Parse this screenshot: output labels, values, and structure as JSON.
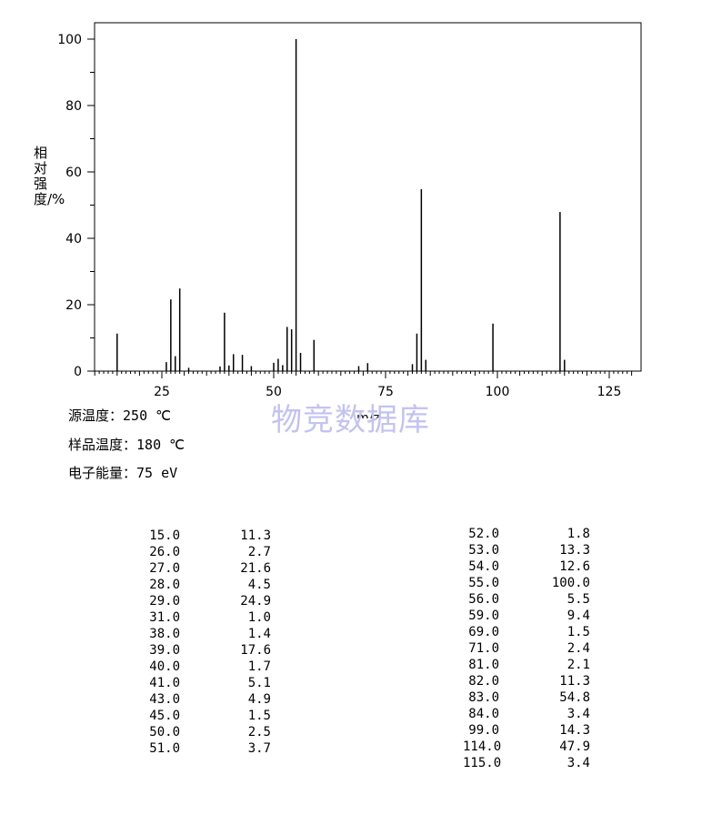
{
  "chart_data": {
    "type": "bar",
    "xlabel": "m/z",
    "ylabel": "相对强度/%",
    "xlim": [
      10,
      130
    ],
    "ylim": [
      0,
      105
    ],
    "x_ticks": [
      25,
      50,
      75,
      100,
      125
    ],
    "y_ticks": [
      0,
      20,
      40,
      60,
      80,
      100
    ],
    "x_tick_labels": [
      "25",
      "50",
      "75",
      "100",
      "125"
    ],
    "y_tick_labels": [
      "0",
      "20",
      "40",
      "60",
      "80",
      "100"
    ],
    "peaks": [
      {
        "mz": 15,
        "intensity": 11.3
      },
      {
        "mz": 26,
        "intensity": 2.7
      },
      {
        "mz": 27,
        "intensity": 21.6
      },
      {
        "mz": 28,
        "intensity": 4.5
      },
      {
        "mz": 29,
        "intensity": 24.9
      },
      {
        "mz": 31,
        "intensity": 1.0
      },
      {
        "mz": 38,
        "intensity": 1.4
      },
      {
        "mz": 39,
        "intensity": 17.6
      },
      {
        "mz": 40,
        "intensity": 1.7
      },
      {
        "mz": 41,
        "intensity": 5.1
      },
      {
        "mz": 43,
        "intensity": 4.9
      },
      {
        "mz": 45,
        "intensity": 1.5
      },
      {
        "mz": 50,
        "intensity": 2.5
      },
      {
        "mz": 51,
        "intensity": 3.7
      },
      {
        "mz": 52,
        "intensity": 1.8
      },
      {
        "mz": 53,
        "intensity": 13.3
      },
      {
        "mz": 54,
        "intensity": 12.6
      },
      {
        "mz": 55,
        "intensity": 100.0
      },
      {
        "mz": 56,
        "intensity": 5.5
      },
      {
        "mz": 59,
        "intensity": 9.4
      },
      {
        "mz": 69,
        "intensity": 1.5
      },
      {
        "mz": 71,
        "intensity": 2.4
      },
      {
        "mz": 81,
        "intensity": 2.1
      },
      {
        "mz": 82,
        "intensity": 11.3
      },
      {
        "mz": 83,
        "intensity": 54.8
      },
      {
        "mz": 84,
        "intensity": 3.4
      },
      {
        "mz": 99,
        "intensity": 14.3
      },
      {
        "mz": 114,
        "intensity": 47.9
      },
      {
        "mz": 115,
        "intensity": 3.4
      }
    ]
  },
  "watermark": "物竞数据库",
  "conditions": [
    {
      "label": "源温度：",
      "value": "250 ℃"
    },
    {
      "label": "样品温度：",
      "value": "180 ℃"
    },
    {
      "label": "电子能量：",
      "value": "75 eV"
    }
  ],
  "table_left": [
    {
      "mz": "15.0",
      "abundance": "11.3"
    },
    {
      "mz": "26.0",
      "abundance": "2.7"
    },
    {
      "mz": "27.0",
      "abundance": "21.6"
    },
    {
      "mz": "28.0",
      "abundance": "4.5"
    },
    {
      "mz": "29.0",
      "abundance": "24.9"
    },
    {
      "mz": "31.0",
      "abundance": "1.0"
    },
    {
      "mz": "38.0",
      "abundance": "1.4"
    },
    {
      "mz": "39.0",
      "abundance": "17.6"
    },
    {
      "mz": "40.0",
      "abundance": "1.7"
    },
    {
      "mz": "41.0",
      "abundance": "5.1"
    },
    {
      "mz": "43.0",
      "abundance": "4.9"
    },
    {
      "mz": "45.0",
      "abundance": "1.5"
    },
    {
      "mz": "50.0",
      "abundance": "2.5"
    },
    {
      "mz": "51.0",
      "abundance": "3.7"
    }
  ],
  "table_right": [
    {
      "mz": "52.0",
      "abundance": "1.8"
    },
    {
      "mz": "53.0",
      "abundance": "13.3"
    },
    {
      "mz": "54.0",
      "abundance": "12.6"
    },
    {
      "mz": "55.0",
      "abundance": "100.0"
    },
    {
      "mz": "56.0",
      "abundance": "5.5"
    },
    {
      "mz": "59.0",
      "abundance": "9.4"
    },
    {
      "mz": "69.0",
      "abundance": "1.5"
    },
    {
      "mz": "71.0",
      "abundance": "2.4"
    },
    {
      "mz": "81.0",
      "abundance": "2.1"
    },
    {
      "mz": "82.0",
      "abundance": "11.3"
    },
    {
      "mz": "83.0",
      "abundance": "54.8"
    },
    {
      "mz": "84.0",
      "abundance": "3.4"
    },
    {
      "mz": "99.0",
      "abundance": "14.3"
    },
    {
      "mz": "114.0",
      "abundance": "47.9"
    },
    {
      "mz": "115.0",
      "abundance": "3.4"
    }
  ],
  "colors": {
    "axis": "#000000",
    "peak": "#000000",
    "watermark": "#c3c3f0"
  }
}
